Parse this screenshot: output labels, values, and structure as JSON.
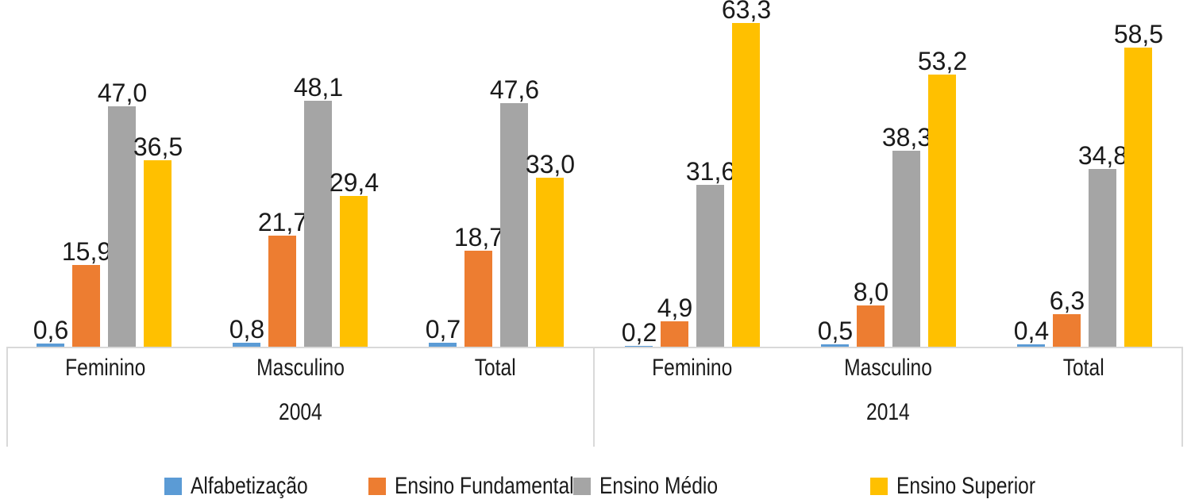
{
  "colors": {
    "series": [
      "#5B9BD5",
      "#ED7D31",
      "#A5A5A5",
      "#FFC000"
    ],
    "axis_line": "#D9D9D9",
    "text": "#1A1A1A",
    "background": "#FFFFFF"
  },
  "legend": {
    "items": [
      {
        "label": "Alfabetização"
      },
      {
        "label": "Ensino Fundamental"
      },
      {
        "label": "Ensino Médio"
      },
      {
        "label": "Ensino Superior"
      }
    ]
  },
  "chart_data": {
    "type": "bar",
    "title": "",
    "xlabel": "",
    "ylabel": "",
    "ylim": [
      0,
      67
    ],
    "grid": false,
    "legend_position": "bottom",
    "decimal_separator": ",",
    "series_names": [
      "Alfabetização",
      "Ensino Fundamental",
      "Ensino Médio",
      "Ensino Superior"
    ],
    "panels": [
      {
        "year": "2004",
        "categories": [
          "Feminino",
          "Masculino",
          "Total"
        ],
        "groups": [
          {
            "category": "Feminino",
            "values": [
              0.6,
              15.9,
              47.0,
              36.5
            ],
            "labels": [
              "0,6",
              "15,9",
              "47,0",
              "36,5"
            ]
          },
          {
            "category": "Masculino",
            "values": [
              0.8,
              21.7,
              48.1,
              29.4
            ],
            "labels": [
              "0,8",
              "21,7",
              "48,1",
              "29,4"
            ]
          },
          {
            "category": "Total",
            "values": [
              0.7,
              18.7,
              47.6,
              33.0
            ],
            "labels": [
              "0,7",
              "18,7",
              "47,6",
              "33,0"
            ]
          }
        ]
      },
      {
        "year": "2014",
        "categories": [
          "Feminino",
          "Masculino",
          "Total"
        ],
        "groups": [
          {
            "category": "Feminino",
            "values": [
              0.2,
              4.9,
              31.6,
              63.3
            ],
            "labels": [
              "0,2",
              "4,9",
              "31,6",
              "63,3"
            ]
          },
          {
            "category": "Masculino",
            "values": [
              0.5,
              8.0,
              38.3,
              53.2
            ],
            "labels": [
              "0,5",
              "8,0",
              "38,3",
              "53,2"
            ]
          },
          {
            "category": "Total",
            "values": [
              0.4,
              6.3,
              34.8,
              58.5
            ],
            "labels": [
              "0,4",
              "6,3",
              "34,8",
              "58,5"
            ]
          }
        ]
      }
    ]
  }
}
